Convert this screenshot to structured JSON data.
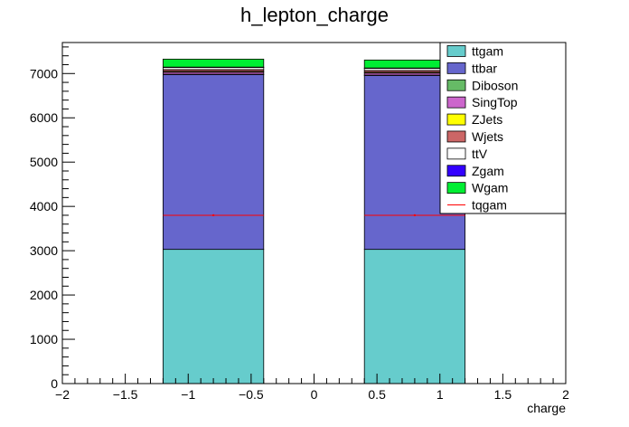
{
  "chart_data": {
    "type": "bar",
    "stacked": true,
    "title": "h_lepton_charge",
    "xlabel": "charge",
    "ylabel": "",
    "xlim": [
      -2,
      2
    ],
    "ylim": [
      0,
      7700
    ],
    "x_ticks": [
      "−2",
      "−1.5",
      "−1",
      "−0.5",
      "0",
      "0.5",
      "1",
      "1.5",
      "2"
    ],
    "x_tick_values": [
      -2,
      -1.5,
      -1,
      -0.5,
      0,
      0.5,
      1,
      1.5,
      2
    ],
    "y_ticks": [
      "0",
      "1000",
      "2000",
      "3000",
      "4000",
      "5000",
      "6000",
      "7000"
    ],
    "y_tick_values": [
      0,
      1000,
      2000,
      3000,
      4000,
      5000,
      6000,
      7000
    ],
    "bins": [
      {
        "x_low": -1.2,
        "x_high": -0.4
      },
      {
        "x_low": 0.4,
        "x_high": 1.2
      }
    ],
    "legend_position": "top-right",
    "series": [
      {
        "name": "ttgam",
        "color": "#66cccc",
        "values": [
          3030,
          3030
        ]
      },
      {
        "name": "ttbar",
        "color": "#6666cc",
        "values": [
          3950,
          3930
        ]
      },
      {
        "name": "Diboson",
        "color": "#66bb66",
        "values": [
          5,
          5
        ]
      },
      {
        "name": "SingTop",
        "color": "#cc66cc",
        "values": [
          45,
          45
        ]
      },
      {
        "name": "ZJets",
        "color": "#ffff00",
        "values": [
          20,
          20
        ]
      },
      {
        "name": "Wjets",
        "color": "#cc6666",
        "values": [
          40,
          40
        ]
      },
      {
        "name": "ttV",
        "color": "#ffffff",
        "values": [
          50,
          50
        ]
      },
      {
        "name": "Zgam",
        "color": "#3300ff",
        "values": [
          5,
          5
        ]
      },
      {
        "name": "Wgam",
        "color": "#00ee33",
        "values": [
          180,
          180
        ]
      }
    ],
    "overlay": {
      "name": "tqgam",
      "color": "#ff0000",
      "type": "line",
      "values": [
        3800,
        3800
      ]
    }
  }
}
